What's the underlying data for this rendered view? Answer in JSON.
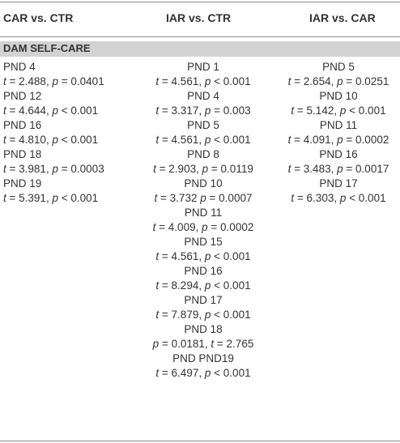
{
  "header": {
    "col1": "CAR vs. CTR",
    "col2": "IAR vs. CTR",
    "col3": "IAR vs. CAR"
  },
  "section": {
    "title": "DAM SELF-CARE"
  },
  "columns": {
    "car_vs_ctr": [
      {
        "pnd": "PND 4",
        "t": "2.488",
        "p_op": "=",
        "p": "0.0401"
      },
      {
        "pnd": "PND 12",
        "t": "4.644",
        "p_op": "<",
        "p": "0.001"
      },
      {
        "pnd": "PND 16",
        "t": "4.810",
        "p_op": "<",
        "p": "0.001"
      },
      {
        "pnd": "PND 18",
        "t": "3.981",
        "p_op": "=",
        "p": "0.0003"
      },
      {
        "pnd": "PND 19",
        "t": "5.391",
        "p_op": "<",
        "p": "0.001"
      }
    ],
    "iar_vs_ctr": [
      {
        "pnd": "PND 1",
        "t": "4.561",
        "p_op": "<",
        "p": "0.001"
      },
      {
        "pnd": "PND 4",
        "t": "3.317",
        "p_op": "=",
        "p": "0.003"
      },
      {
        "pnd": "PND 5",
        "t": "4.561",
        "p_op": "<",
        "p": "0.001"
      },
      {
        "pnd": "PND 8",
        "t": "2.903",
        "p_op": "=",
        "p": "0.0119"
      },
      {
        "pnd": "PND 10",
        "t": "3.732",
        "p_op": "=",
        "p": "0.0007",
        "no_comma": true
      },
      {
        "pnd": "PND 11",
        "t": "4.009",
        "p_op": "=",
        "p": "0.0002"
      },
      {
        "pnd": "PND 15",
        "t": "4.561",
        "p_op": "<",
        "p": "0.001"
      },
      {
        "pnd": "PND 16",
        "t": "8.294",
        "p_op": "<",
        "p": "0.001"
      },
      {
        "pnd": "PND 17",
        "t": "7.879",
        "p_op": "<",
        "p": "0.001"
      },
      {
        "pnd": "PND 18",
        "t": "2.765",
        "p_op": "=",
        "p": "0.0181",
        "p_first": true
      },
      {
        "pnd": "PND PND19",
        "t": "6.497",
        "p_op": "<",
        "p": "0.001"
      }
    ],
    "iar_vs_car": [
      {
        "pnd": "PND 5",
        "t": "2.654",
        "p_op": "=",
        "p": "0.0251"
      },
      {
        "pnd": "PND 10",
        "t": "5.142",
        "p_op": "<",
        "p": "0.001"
      },
      {
        "pnd": "PND 11",
        "t": "4.091",
        "p_op": "=",
        "p": "0.0002"
      },
      {
        "pnd": "PND 16",
        "t": "3.483",
        "p_op": "=",
        "p": "0.0017"
      },
      {
        "pnd": "PND 17",
        "t": "6.303",
        "p_op": "<",
        "p": "0.001"
      }
    ]
  }
}
